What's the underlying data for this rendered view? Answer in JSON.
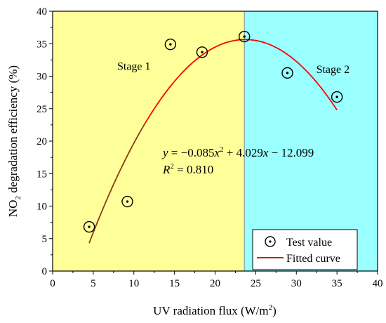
{
  "chart_data": {
    "type": "scatter",
    "xlabel": "UV radiation flux (W/m",
    "xlabel_sup": "2",
    "xlabel_end": ")",
    "ylabel": "NO",
    "ylabel_sub": "2",
    "ylabel_end": " degradation efficiency (%)",
    "xlim": [
      0,
      40
    ],
    "ylim": [
      0,
      40
    ],
    "x_ticks": [
      0,
      5,
      10,
      15,
      20,
      25,
      30,
      35,
      40
    ],
    "y_ticks": [
      0,
      5,
      10,
      15,
      20,
      25,
      30,
      35,
      40
    ],
    "regions": [
      {
        "label": "Stage 1",
        "x_range": [
          0,
          23.6
        ],
        "color": "#ffff99",
        "label_pos": [
          10,
          31
        ]
      },
      {
        "label": "Stage 2",
        "x_range": [
          23.6,
          40
        ],
        "color": "#99ffff",
        "label_pos": [
          34.5,
          30.5
        ]
      }
    ],
    "series": [
      {
        "name": "Test value",
        "kind": "scatter",
        "x": [
          4.5,
          9.2,
          14.5,
          18.4,
          23.6,
          28.9,
          35.0
        ],
        "y": [
          6.8,
          10.7,
          34.9,
          33.7,
          36.1,
          30.5,
          26.8
        ]
      },
      {
        "name": "Fitted curve",
        "kind": "line",
        "equation": {
          "a": -0.085,
          "b": 4.029,
          "c": -12.099
        },
        "x_range": [
          4.5,
          35.0
        ],
        "color": "#ff0000"
      }
    ],
    "annotation": {
      "eq_y": "y",
      "eq_rest1": " = −0.085",
      "eq_x1": "x",
      "eq_sup": "2",
      "eq_rest2": " + 4.029",
      "eq_x2": "x",
      "eq_rest3": " − 12.099",
      "r_label": "R",
      "r_sup": "2",
      "r_value": " = 0.810"
    },
    "legend": {
      "position": "bottom-right",
      "entries": [
        "Test value",
        "Fitted curve"
      ]
    }
  }
}
